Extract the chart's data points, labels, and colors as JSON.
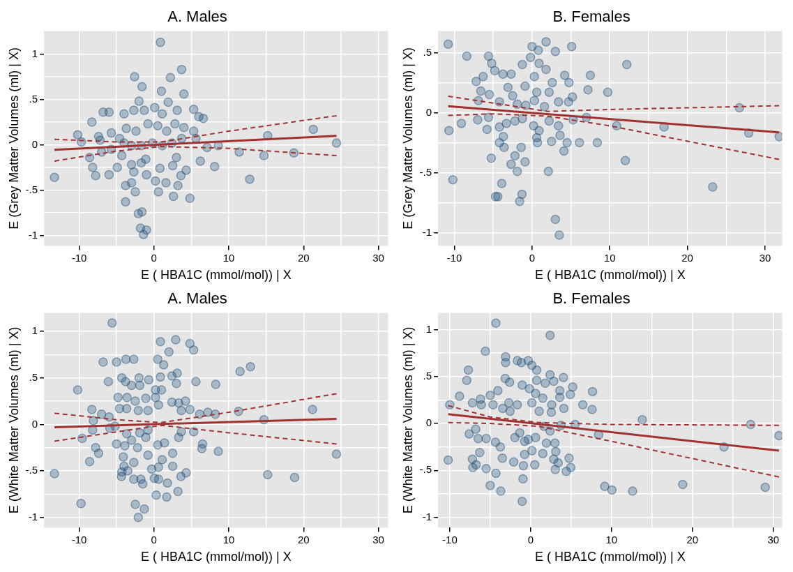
{
  "chart_data": [
    {
      "type": "scatter",
      "title": "A. Males",
      "xlabel": "E ( HBA1C (mmol/mol)) | X",
      "ylabel": "E (Grey Matter Volumes (ml) | X)",
      "xlim": [
        -14.7,
        31.3
      ],
      "ylim": [
        -1.115,
        1.255
      ],
      "xticks": [
        -10,
        {
          "value": -5,
          "label": null
        },
        0,
        {
          "value": 5,
          "label": null
        },
        10,
        {
          "value": 15,
          "label": null
        },
        20,
        {
          "value": 25,
          "label": null
        },
        30
      ],
      "yticks": [
        -1,
        {
          "value": -0.75,
          "label": null
        },
        {
          "value": -0.5,
          "label": "-.5"
        },
        {
          "value": -0.25,
          "label": null
        },
        0,
        {
          "value": 0.25,
          "label": null
        },
        {
          "value": 0.5,
          "label": ".5"
        },
        {
          "value": 0.75,
          "label": null
        },
        1
      ],
      "grid": true,
      "marker": "circle",
      "series": [
        {
          "type": "scatter",
          "color": "#1f4e79",
          "x": [
            -13.3,
            0.86,
            3.7,
            -2.6,
            2.2,
            -1.6,
            1.0,
            4.0,
            -2.0,
            1.9,
            0.1,
            3.1,
            5.3,
            -2.7,
            -6.8,
            -6.0,
            -1.3,
            1.1,
            6.0,
            6.6,
            -4.0,
            -8.3,
            -10.2,
            -9.7,
            -7.4,
            -7.2,
            -5.7,
            -4.6,
            -3.7,
            -2.4,
            -0.8,
            0.5,
            1.7,
            2.8,
            4.0,
            5.3,
            5.6,
            3.7,
            2.4,
            1.1,
            -0.2,
            -1.7,
            -3.0,
            -4.0,
            7.1,
            8.6,
            11.4,
            14.7,
            15.2,
            18.7,
            21.3,
            24.4,
            12.8,
            8.1,
            6.2,
            4.3,
            3.0,
            2.5,
            3.6,
            3.2,
            2.6,
            4.8,
            0.6,
            0.2,
            1.6,
            0.8,
            -1.0,
            -1.1,
            -1.7,
            -2.5,
            -3.0,
            -3.8,
            -3.8,
            -2.1,
            -1.6,
            -1.8,
            -1.0,
            -1.4,
            -6.0,
            -4.9,
            -7.8,
            -8.2,
            -8.6,
            -7.0,
            -5.7,
            -4.3,
            -3.0,
            -2.7
          ],
          "values": [
            -0.36,
            1.13,
            0.83,
            0.75,
            0.74,
            0.64,
            0.59,
            0.56,
            0.48,
            0.47,
            0.41,
            0.38,
            0.39,
            0.38,
            0.36,
            0.36,
            0.38,
            0.34,
            0.31,
            0.29,
            0.34,
            0.25,
            0.11,
            0.03,
            0.09,
            0.05,
            0.13,
            0.07,
            0.18,
            0.15,
            0.23,
            0.21,
            0.15,
            0.23,
            0.19,
            0.15,
            0.07,
            0.07,
            0.02,
            -0.01,
            0.02,
            -0.01,
            -0.01,
            0.02,
            -0.03,
            -0.01,
            -0.08,
            -0.12,
            0.1,
            -0.09,
            0.17,
            0.02,
            -0.38,
            -0.24,
            -0.18,
            -0.28,
            -0.14,
            -0.23,
            -0.34,
            -0.45,
            -0.57,
            -0.59,
            -0.52,
            -0.4,
            -0.42,
            -0.26,
            -0.33,
            -0.16,
            -0.2,
            -0.52,
            -0.42,
            -0.45,
            -0.63,
            -0.76,
            -0.74,
            -0.92,
            -0.94,
            -0.99,
            -0.33,
            -0.25,
            -0.34,
            -0.25,
            -0.14,
            -0.08,
            -0.05,
            -0.12,
            -0.22,
            -0.3
          ]
        },
        {
          "type": "line",
          "marker": "none",
          "color": "#a03232",
          "x": [
            -13.3,
            24.4
          ],
          "values": [
            -0.056,
            0.099
          ]
        },
        {
          "type": "line",
          "marker": "none",
          "line_style": "dashed",
          "color": "#a03232",
          "x": [
            -13.3,
            -5,
            1,
            10,
            24.4
          ],
          "values": [
            0.06,
            0.03,
            0.03,
            0.15,
            0.32
          ]
        },
        {
          "type": "line",
          "marker": "none",
          "line_style": "dashed",
          "color": "#a03232",
          "x": [
            -13.3,
            -5,
            1,
            10,
            24.4
          ],
          "values": [
            -0.18,
            -0.07,
            -0.02,
            -0.04,
            -0.12
          ]
        }
      ]
    },
    {
      "type": "scatter",
      "title": "B. Females",
      "xlabel": "E ( HBA1C (mmol/mol)) | X",
      "ylabel": "E (Grey Matter Volumes (ml) | X)",
      "xlim": [
        -12.1,
        32.2
      ],
      "ylim": [
        -1.11,
        0.68
      ],
      "xticks": [
        -10,
        {
          "value": -5,
          "label": null
        },
        0,
        {
          "value": 5,
          "label": null
        },
        10,
        {
          "value": 15,
          "label": null
        },
        20,
        {
          "value": 25,
          "label": null
        },
        30
      ],
      "yticks": [
        -1,
        {
          "value": -0.75,
          "label": null
        },
        {
          "value": -0.5,
          "label": "-.5"
        },
        {
          "value": -0.25,
          "label": null
        },
        0,
        {
          "value": 0.25,
          "label": null
        },
        {
          "value": 0.5,
          "label": ".5"
        }
      ],
      "grid": true,
      "marker": "circle",
      "series": [
        {
          "type": "scatter",
          "color": "#1f4e79",
          "x": [
            -10.8,
            -8.4,
            -10.7,
            -9.1,
            -10.2,
            -5.6,
            -5.2,
            -4.8,
            -7.2,
            -6.3,
            -3.75,
            -2.7,
            -1.25,
            -0.2,
            0,
            0.8,
            1.8,
            3.0,
            5.1,
            0.9,
            1.8,
            0.3,
            4.2,
            4.75,
            7.5,
            7.2,
            9.75,
            12.2,
            2.6,
            5.2,
            4.7,
            3.4,
            2.2,
            0.6,
            -0.9,
            -3.1,
            -2.5,
            -5.5,
            -6.6,
            -6.9,
            -4.2,
            -1.9,
            -0.8,
            0.3,
            1.6,
            -7.0,
            -5.6,
            -5.8,
            -4.2,
            -3.3,
            -2.2,
            -1.25,
            0.2,
            0.9,
            0.6,
            0.7,
            2.2,
            3.4,
            3.6,
            2.5,
            4.5,
            4.1,
            5.3,
            7.0,
            6.1,
            8.4,
            10.9,
            17.0,
            26.7,
            27.9,
            31.8,
            12.0,
            23.25,
            2.1,
            -0.9,
            -1.9,
            -2.7,
            -2.2,
            -1.4,
            -3.6,
            -4.2,
            -3.7,
            -5.25,
            -3.9,
            -4.7,
            -4.4,
            -1.3,
            -1.6,
            3.0,
            3.5
          ],
          "values": [
            0.57,
            0.47,
            -0.15,
            -0.09,
            -0.56,
            0.47,
            0.41,
            0.35,
            0.26,
            0.3,
            0.32,
            0.32,
            0.4,
            0.46,
            0.55,
            0.52,
            0.59,
            0.51,
            0.55,
            0.41,
            0.36,
            0.3,
            0.31,
            0.25,
            0.31,
            0.19,
            0.17,
            0.4,
            0.25,
            0.13,
            0.09,
            0.09,
            0.17,
            0.17,
            0.22,
            0.21,
            0.14,
            0.15,
            0.18,
            0.1,
            0.09,
            0.07,
            0.06,
            0.1,
            0.05,
            -0.06,
            -0.04,
            -0.14,
            -0.12,
            -0.09,
            -0.07,
            -0.05,
            -0.11,
            -0.15,
            -0.21,
            -0.25,
            -0.07,
            -0.11,
            -0.19,
            -0.24,
            -0.25,
            -0.32,
            -0.06,
            -0.04,
            -0.25,
            -0.25,
            -0.11,
            -0.12,
            0.04,
            -0.17,
            -0.2,
            -0.4,
            -0.62,
            -0.49,
            -0.41,
            -0.49,
            -0.43,
            -0.36,
            -0.29,
            -0.29,
            -0.25,
            -0.2,
            -0.38,
            -0.59,
            -0.7,
            -0.7,
            -0.68,
            -0.74,
            -0.89,
            -1.02
          ]
        },
        {
          "type": "line",
          "marker": "none",
          "color": "#a03232",
          "x": [
            -10.8,
            31.8
          ],
          "values": [
            0.053,
            -0.165
          ]
        },
        {
          "type": "line",
          "marker": "none",
          "line_style": "dashed",
          "color": "#a03232",
          "x": [
            -10.8,
            -5,
            2,
            10,
            31.8
          ],
          "values": [
            0.136,
            0.08,
            0.01,
            0.026,
            0.057
          ]
        },
        {
          "type": "line",
          "marker": "none",
          "line_style": "dashed",
          "color": "#a03232",
          "x": [
            -10.8,
            -5,
            2,
            10,
            31.8
          ],
          "values": [
            -0.024,
            -0.01,
            -0.03,
            -0.11,
            -0.39
          ]
        }
      ]
    },
    {
      "type": "scatter",
      "title": "A. Males",
      "xlabel": "E ( HBA1C (mmol/mol)) | X",
      "ylabel": "E (White Matter Volumes (ml) | X)",
      "xlim": [
        -14.7,
        31.3
      ],
      "ylim": [
        -1.11,
        1.2
      ],
      "xticks": [
        -10,
        {
          "value": -5,
          "label": null
        },
        0,
        {
          "value": 5,
          "label": null
        },
        10,
        {
          "value": 15,
          "label": null
        },
        20,
        {
          "value": 25,
          "label": null
        },
        30
      ],
      "yticks": [
        -1,
        {
          "value": -0.75,
          "label": null
        },
        {
          "value": -0.5,
          "label": "-.5"
        },
        {
          "value": -0.25,
          "label": null
        },
        0,
        {
          "value": 0.25,
          "label": null
        },
        {
          "value": 0.5,
          "label": ".5"
        },
        {
          "value": 0.75,
          "label": null
        },
        1
      ],
      "grid": true,
      "marker": "circle",
      "series": [
        {
          "type": "scatter",
          "color": "#1f4e79",
          "x": [
            -13.3,
            -9.75,
            -10.2,
            -5.6,
            -8.3,
            -8.1,
            -8.2,
            -9.6,
            -7.8,
            -7.4,
            -8.6,
            -7.0,
            -6.0,
            -6.8,
            -5.0,
            -3.75,
            -2.7,
            -6.1,
            -4.3,
            -3.8,
            -2.0,
            -0.7,
            -3.0,
            -1.9,
            0.86,
            2.9,
            4.8,
            5.3,
            2.0,
            0.5,
            1.3,
            0.86,
            3.1,
            2.4,
            3.0,
            5.6,
            8.25,
            11.5,
            12.9,
            0.2,
            1.0,
            -4.8,
            -3.6,
            -2.5,
            -1.1,
            0.2,
            0.6,
            -0.8,
            -2.1,
            -4.6,
            -3.65,
            2.4,
            3.3,
            4.2,
            3.65,
            4.8,
            6.1,
            7.2,
            8.2,
            11.3,
            14.7,
            21.2,
            24.4,
            15.2,
            18.8,
            8.6,
            6.5,
            6.4,
            5.3,
            3.65,
            3.3,
            2.5,
            2.5,
            4.3,
            3.6,
            3.2,
            1.8,
            1.7,
            0.3,
            0.6,
            0.05,
            0.6,
            1.1,
            0.5,
            1.4,
            -0.8,
            -0.8,
            -0.3,
            -1.1,
            -1.9,
            -3.0,
            -2.2,
            -1.75,
            -1.5,
            -2.7,
            -2.5,
            -1.3,
            -2.1,
            -4.35,
            -4.3,
            -3.5,
            -4.0,
            -4.1,
            -5.0,
            -3.9,
            -3.65,
            -2.7,
            -5.9,
            -5.2
          ],
          "values": [
            -0.53,
            -0.85,
            0.37,
            1.09,
            0.16,
            0.04,
            -0.06,
            -0.15,
            -0.25,
            -0.31,
            -0.4,
            0.11,
            0.08,
            0.67,
            0.67,
            0.7,
            0.7,
            0.46,
            0.5,
            0.46,
            0.5,
            0.48,
            0.42,
            0.42,
            0.89,
            0.91,
            0.87,
            0.8,
            0.78,
            0.7,
            0.64,
            0.51,
            0.55,
            0.52,
            0.44,
            0.46,
            0.43,
            0.57,
            0.62,
            0.37,
            0.37,
            0.29,
            0.29,
            0.25,
            0.28,
            0.29,
            0.21,
            0.15,
            0.15,
            0.17,
            0.17,
            0.24,
            0.23,
            0.25,
            0.15,
            0.16,
            0.11,
            0.13,
            0.11,
            0.14,
            0.05,
            0.16,
            -0.32,
            -0.54,
            -0.57,
            -0.29,
            -0.21,
            -0.26,
            -0.08,
            -0.08,
            -0.14,
            -0.31,
            -0.45,
            -0.52,
            -0.56,
            -0.72,
            -0.63,
            -0.78,
            -0.76,
            -0.59,
            -0.58,
            -0.46,
            -0.38,
            -0.22,
            -0.2,
            -0.06,
            -0.33,
            -0.48,
            -0.14,
            -0.09,
            -0.17,
            -0.25,
            -0.59,
            -0.64,
            -0.59,
            -0.86,
            -0.91,
            -1.0,
            -0.56,
            -0.51,
            -0.5,
            -0.45,
            -0.35,
            -0.21,
            -0.23,
            -0.1,
            -0.41,
            -0.04,
            -0.02
          ]
        },
        {
          "type": "line",
          "marker": "none",
          "color": "#a03232",
          "x": [
            -13.3,
            24.4
          ],
          "values": [
            -0.03,
            0.06
          ]
        },
        {
          "type": "line",
          "marker": "none",
          "line_style": "dashed",
          "color": "#a03232",
          "x": [
            -13.3,
            -5,
            1,
            10,
            24.4
          ],
          "values": [
            0.12,
            0.05,
            0.02,
            0.13,
            0.33
          ]
        },
        {
          "type": "line",
          "marker": "none",
          "line_style": "dashed",
          "color": "#a03232",
          "x": [
            -13.3,
            -5,
            1,
            10,
            24.4
          ],
          "values": [
            -0.18,
            -0.08,
            -0.01,
            -0.09,
            -0.21
          ]
        }
      ]
    },
    {
      "type": "scatter",
      "title": "B. Females",
      "xlabel": "E ( HBA1C (mmol/mol)) | X",
      "ylabel": "E (White Matter Volumes (ml) | X)",
      "xlim": [
        -11.45,
        31.1
      ],
      "ylim": [
        -1.11,
        1.18
      ],
      "xticks": [
        -10,
        {
          "value": -5,
          "label": null
        },
        0,
        {
          "value": 5,
          "label": null
        },
        10,
        {
          "value": 15,
          "label": null
        },
        20,
        {
          "value": 25,
          "label": null
        },
        30
      ],
      "yticks": [
        -1,
        {
          "value": -0.75,
          "label": null
        },
        {
          "value": -0.5,
          "label": "-.5"
        },
        {
          "value": -0.25,
          "label": null
        },
        0,
        {
          "value": 0.25,
          "label": null
        },
        {
          "value": 0.5,
          "label": ".5"
        },
        {
          "value": 0.75,
          "label": null
        },
        1
      ],
      "grid": true,
      "marker": "circle",
      "series": [
        {
          "type": "scatter",
          "color": "#1f4e79",
          "x": [
            -10.2,
            -10.0,
            -8.8,
            -7.9,
            -7.7,
            -7.6,
            -7.2,
            -6.2,
            -6.1,
            -6.8,
            -6.5,
            -7.2,
            -6.75,
            -7.15,
            -6.3,
            -5.6,
            -5.5,
            -5.5,
            -5.0,
            -5.0,
            -4.65,
            -4.3,
            -4.3,
            -4.05,
            -3.7,
            -3.5,
            -4.35,
            -3.75,
            -3.1,
            -3.1,
            -3.15,
            -2.6,
            -2.7,
            -3.45,
            -2.55,
            -2.1,
            -1.65,
            -1.15,
            -0.3,
            0.15,
            0.75,
            -1.05,
            -0.15,
            -1.65,
            -1.95,
            -1.35,
            -0.75,
            -0.3,
            -0.75,
            -0.9,
            -0.95,
            -1.05,
            0.15,
            0.5,
            0.6,
            0.75,
            0.15,
            1.05,
            1.5,
            1.8,
            2.4,
            2.4,
            2.85,
            4.05,
            3.6,
            3.6,
            2.6,
            2.55,
            4.1,
            4.9,
            5.2,
            6.45,
            7.65,
            7.6,
            1.65,
            2.4,
            1.95,
            1.5,
            0.6,
            3.0,
            3.1,
            2.85,
            3.4,
            3.05,
            4.4,
            4.95,
            4.75,
            3.75,
            5.5,
            8.4,
            9.15,
            10.05,
            12.6,
            13.8,
            18.8,
            23.9,
            27.2,
            29.0,
            30.7
          ],
          "values": [
            -0.39,
            0.2,
            0.29,
            0.46,
            0.57,
            -0.11,
            0.22,
            0.26,
            0.2,
            -0.06,
            -0.16,
            -0.38,
            -0.44,
            -0.47,
            -0.31,
            0.77,
            -0.16,
            -0.48,
            0.3,
            -0.66,
            0.2,
            1.07,
            -0.53,
            0.35,
            -0.72,
            -0.37,
            -0.2,
            -0.25,
            0.71,
            0.65,
            0.48,
            0.44,
            0.22,
            0.16,
            0.13,
            -0.41,
            0.67,
            0.65,
            0.67,
            0.62,
            0.57,
            0.41,
            0.37,
            0.2,
            -0.15,
            -0.1,
            -0.19,
            -0.17,
            -0.33,
            -0.45,
            -0.59,
            -0.83,
            -0.29,
            -0.44,
            0.32,
            0.46,
            0.22,
            0.13,
            0.27,
            0.43,
            0.52,
            0.94,
            0.45,
            0.49,
            0.35,
            0.28,
            0.2,
            0.12,
            0.16,
            0.31,
            0.39,
            0.2,
            0.34,
            0.15,
            -0.03,
            -0.08,
            -0.21,
            -0.32,
            -0.15,
            -0.21,
            -0.3,
            -0.38,
            -0.42,
            -0.49,
            -0.51,
            -0.47,
            -0.37,
            -0.02,
            -0.01,
            -0.12,
            -0.67,
            -0.71,
            -0.72,
            0.04,
            -0.65,
            -0.25,
            -0.01,
            -0.68,
            -0.13
          ]
        },
        {
          "type": "line",
          "marker": "none",
          "color": "#a03232",
          "x": [
            -10.2,
            30.7
          ],
          "values": [
            0.1,
            -0.29
          ]
        },
        {
          "type": "line",
          "marker": "none",
          "line_style": "dashed",
          "color": "#a03232",
          "x": [
            -10.2,
            -5,
            1,
            10,
            30.7
          ],
          "values": [
            0.19,
            0.07,
            0.01,
            -0.01,
            -0.02
          ]
        },
        {
          "type": "line",
          "marker": "none",
          "line_style": "dashed",
          "color": "#a03232",
          "x": [
            -10.2,
            -5,
            1,
            10,
            30.7
          ],
          "values": [
            0.01,
            0.0,
            -0.03,
            -0.19,
            -0.57
          ]
        }
      ]
    }
  ]
}
